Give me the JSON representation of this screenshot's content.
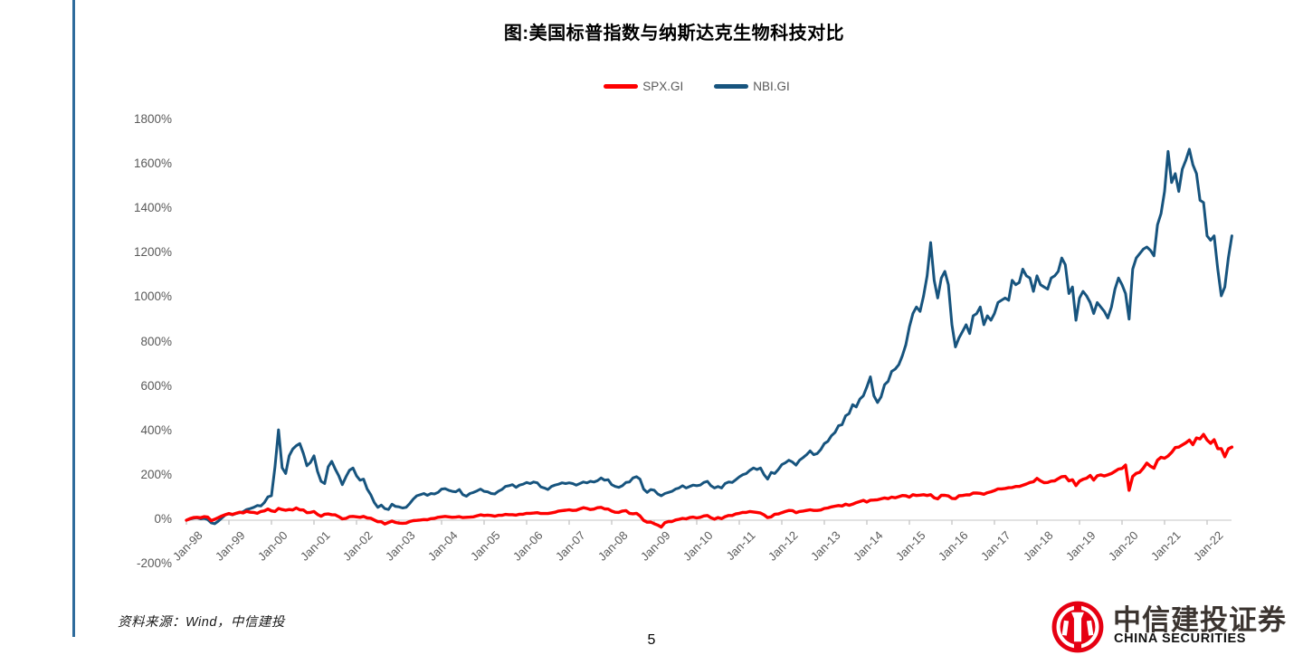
{
  "page": {
    "number": "5"
  },
  "source_note": "资料来源：Wind，中信建投",
  "logo": {
    "cn": "中信建投证券",
    "en": "CHINA SECURITIES",
    "mark_color": "#e60012"
  },
  "chart_data": {
    "type": "line",
    "title": "图:美国标普指数与纳斯达克生物科技对比",
    "xlabel": "",
    "ylabel": "",
    "grid": false,
    "legend_position": "top-center",
    "ylim": [
      -200,
      1800
    ],
    "y_ticks": [
      1800,
      1600,
      1400,
      1200,
      1000,
      800,
      600,
      400,
      200,
      0,
      -200
    ],
    "y_tick_suffix": "%",
    "x_tick_labels": [
      "Jan-98",
      "Jan-99",
      "Jan-00",
      "Jan-01",
      "Jan-02",
      "Jan-03",
      "Jan-04",
      "Jan-05",
      "Jan-06",
      "Jan-07",
      "Jan-08",
      "Jan-09",
      "Jan-10",
      "Jan-11",
      "Jan-12",
      "Jan-13",
      "Jan-14",
      "Jan-15",
      "Jan-16",
      "Jan-17",
      "Jan-18",
      "Jan-19",
      "Jan-20",
      "Jan-21",
      "Jan-22"
    ],
    "x_unit": "month",
    "x_start": "Jan-98",
    "x_end": "Aug-22",
    "axis_color": "#d9d9d9",
    "tick_color": "#bfbfbf",
    "series": [
      {
        "name": "SPX.GI",
        "color": "#fe0000",
        "values": [
          0,
          7,
          12,
          13,
          11,
          16,
          14,
          -2,
          4,
          12,
          19,
          25,
          30,
          26,
          31,
          36,
          33,
          40,
          36,
          35,
          31,
          39,
          42,
          50,
          42,
          39,
          53,
          48,
          45,
          48,
          46,
          55,
          47,
          46,
          34,
          35,
          39,
          26,
          18,
          27,
          28,
          25,
          24,
          16,
          6,
          8,
          16,
          17,
          15,
          13,
          17,
          10,
          9,
          1,
          -7,
          -7,
          -17,
          -10,
          -4,
          -10,
          -13,
          -14,
          -13,
          -6,
          -2,
          -1,
          1,
          3,
          2,
          7,
          8,
          13,
          15,
          17,
          15,
          13,
          14,
          16,
          12,
          13,
          14,
          15,
          20,
          24,
          21,
          23,
          21,
          18,
          22,
          22,
          26,
          25,
          25,
          23,
          27,
          27,
          31,
          31,
          32,
          34,
          30,
          30,
          30,
          33,
          36,
          41,
          43,
          45,
          47,
          44,
          45,
          51,
          56,
          53,
          48,
          50,
          56,
          58,
          51,
          50,
          41,
          36,
          35,
          41,
          43,
          31,
          29,
          31,
          19,
          -1,
          -9,
          -8,
          -16,
          -22,
          -31,
          -11,
          -6,
          -6,
          1,
          4,
          8,
          6,
          12,
          14,
          10,
          13,
          19,
          21,
          11,
          5,
          12,
          7,
          16,
          21,
          21,
          28,
          31,
          35,
          35,
          39,
          37,
          35,
          32,
          24,
          12,
          15,
          27,
          28,
          34,
          39,
          44,
          43,
          34,
          39,
          41,
          44,
          47,
          44,
          44,
          46,
          53,
          55,
          60,
          63,
          66,
          64,
          72,
          67,
          72,
          79,
          84,
          89,
          82,
          90,
          91,
          92,
          96,
          100,
          97,
          104,
          101,
          106,
          111,
          110,
          104,
          115,
          111,
          113,
          115,
          111,
          115,
          101,
          96,
          112,
          112,
          109,
          98,
          97,
          110,
          111,
          114,
          114,
          122,
          122,
          121,
          117,
          124,
          128,
          133,
          141,
          141,
          143,
          146,
          147,
          152,
          152,
          157,
          163,
          170,
          173,
          188,
          177,
          169,
          170,
          176,
          177,
          187,
          196,
          197,
          177,
          182,
          156,
          176,
          184,
          189,
          201,
          181,
          200,
          204,
          199,
          204,
          210,
          220,
          230,
          233,
          248,
          135,
          197,
          211,
          216,
          234,
          257,
          243,
          234,
          270,
          283,
          279,
          289,
          305,
          327,
          329,
          339,
          348,
          361,
          340,
          370,
          366,
          386,
          361,
          346,
          362,
          322,
          322,
          286,
          321,
          329
        ]
      },
      {
        "name": "NBI.GI",
        "color": "#17547e",
        "values": [
          0,
          5,
          9,
          11,
          6,
          8,
          3,
          -12,
          -16,
          -4,
          10,
          24,
          28,
          24,
          30,
          34,
          38,
          48,
          52,
          58,
          66,
          64,
          80,
          105,
          110,
          240,
          407,
          236,
          210,
          290,
          320,
          335,
          345,
          300,
          245,
          260,
          290,
          220,
          175,
          165,
          240,
          265,
          230,
          200,
          160,
          195,
          225,
          235,
          200,
          180,
          185,
          140,
          115,
          80,
          58,
          68,
          52,
          48,
          72,
          62,
          60,
          55,
          58,
          75,
          95,
          110,
          115,
          120,
          112,
          120,
          118,
          125,
          140,
          142,
          135,
          130,
          128,
          138,
          115,
          108,
          120,
          125,
          132,
          140,
          130,
          128,
          120,
          118,
          130,
          138,
          152,
          155,
          160,
          148,
          158,
          162,
          170,
          165,
          172,
          168,
          150,
          145,
          138,
          152,
          158,
          162,
          168,
          165,
          168,
          165,
          158,
          165,
          172,
          168,
          175,
          172,
          178,
          190,
          180,
          182,
          160,
          152,
          148,
          155,
          170,
          172,
          190,
          196,
          185,
          140,
          125,
          138,
          135,
          118,
          110,
          120,
          125,
          130,
          140,
          145,
          155,
          145,
          152,
          158,
          155,
          158,
          170,
          175,
          155,
          145,
          152,
          145,
          165,
          172,
          170,
          182,
          195,
          205,
          210,
          225,
          235,
          228,
          235,
          205,
          185,
          215,
          210,
          228,
          250,
          258,
          270,
          262,
          248,
          270,
          282,
          295,
          312,
          295,
          300,
          318,
          345,
          355,
          380,
          395,
          425,
          430,
          470,
          480,
          520,
          510,
          545,
          560,
          600,
          645,
          560,
          530,
          555,
          610,
          625,
          670,
          680,
          700,
          740,
          790,
          870,
          930,
          960,
          940,
          1010,
          1100,
          1250,
          1080,
          1000,
          1090,
          1120,
          1060,
          880,
          780,
          820,
          850,
          880,
          840,
          920,
          930,
          960,
          880,
          920,
          900,
          930,
          980,
          990,
          1000,
          990,
          1080,
          1060,
          1070,
          1130,
          1100,
          1090,
          1030,
          1100,
          1060,
          1050,
          1040,
          1090,
          1100,
          1120,
          1180,
          1150,
          1020,
          1050,
          900,
          1000,
          1030,
          1010,
          980,
          930,
          980,
          960,
          940,
          910,
          960,
          1040,
          1090,
          1060,
          1020,
          905,
          1130,
          1180,
          1200,
          1220,
          1230,
          1215,
          1190,
          1330,
          1380,
          1480,
          1660,
          1520,
          1560,
          1480,
          1580,
          1620,
          1670,
          1600,
          1560,
          1440,
          1430,
          1280,
          1260,
          1280,
          1130,
          1010,
          1050,
          1180,
          1280
        ]
      }
    ]
  }
}
